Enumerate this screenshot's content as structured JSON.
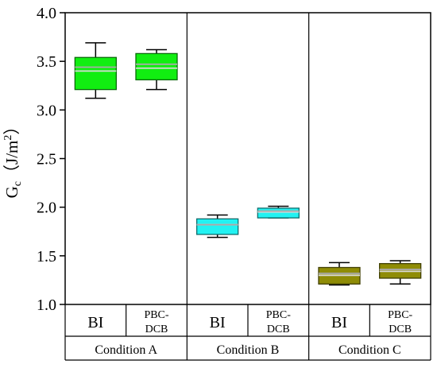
{
  "chart_data": {
    "type": "box",
    "ylabel": {
      "main": "G",
      "sub": "c",
      "units_open": "（J/m",
      "sup": "2",
      "units_close": "）"
    },
    "ylim": [
      1.0,
      4.0
    ],
    "yticks": [
      "1.0",
      "1.5",
      "2.0",
      "2.5",
      "3.0",
      "3.5",
      "4.0"
    ],
    "groups": [
      {
        "label": "Condition A",
        "color": "#11ee11",
        "categories": [
          {
            "label": [
              "BI"
            ],
            "box": {
              "min": 3.12,
              "q1": 3.21,
              "median": 3.4,
              "mean": 3.44,
              "q3": 3.54,
              "max": 3.69
            }
          },
          {
            "label": [
              "PBC-",
              "DCB"
            ],
            "box": {
              "min": 3.21,
              "q1": 3.31,
              "median": 3.43,
              "mean": 3.47,
              "q3": 3.58,
              "max": 3.62
            }
          }
        ]
      },
      {
        "label": "Condition B",
        "color": "#22f2f2",
        "categories": [
          {
            "label": [
              "BI"
            ],
            "box": {
              "min": 1.69,
              "q1": 1.72,
              "median": 1.82,
              "mean": 1.82,
              "q3": 1.88,
              "max": 1.92
            }
          },
          {
            "label": [
              "PBC-",
              "DCB"
            ],
            "box": {
              "min": 1.89,
              "q1": 1.89,
              "median": 1.95,
              "mean": 1.96,
              "q3": 1.99,
              "max": 2.01
            }
          }
        ]
      },
      {
        "label": "Condition C",
        "color": "#8f8c06",
        "categories": [
          {
            "label": [
              "BI"
            ],
            "box": {
              "min": 1.2,
              "q1": 1.21,
              "median": 1.3,
              "mean": 1.32,
              "q3": 1.38,
              "max": 1.43
            }
          },
          {
            "label": [
              "PBC-",
              "DCB"
            ],
            "box": {
              "min": 1.21,
              "q1": 1.27,
              "median": 1.34,
              "mean": 1.36,
              "q3": 1.42,
              "max": 1.45
            }
          }
        ]
      }
    ]
  }
}
